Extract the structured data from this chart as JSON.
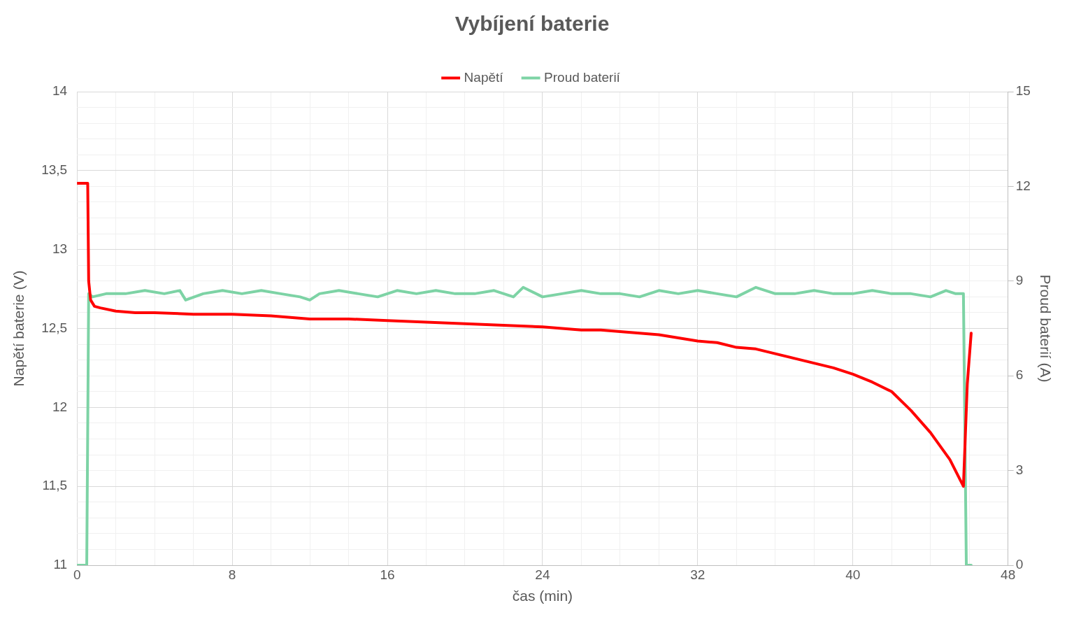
{
  "chart_data": {
    "type": "line",
    "title": "Vybíjení baterie",
    "xlabel": "čas (min)",
    "ylabel": "Napětí baterie (V)",
    "y2label": "Proud baterií (A)",
    "xlim": [
      0,
      48
    ],
    "xticks": [
      0,
      {
        "value": 2,
        "label": null
      },
      {
        "value": 4,
        "label": null
      },
      {
        "value": 6,
        "label": null
      },
      8,
      {
        "value": 10,
        "label": null
      },
      {
        "value": 12,
        "label": null
      },
      {
        "value": 14,
        "label": null
      },
      16,
      {
        "value": 18,
        "label": null
      },
      {
        "value": 20,
        "label": null
      },
      {
        "value": 22,
        "label": null
      },
      24,
      {
        "value": 26,
        "label": null
      },
      {
        "value": 28,
        "label": null
      },
      {
        "value": 30,
        "label": null
      },
      32,
      {
        "value": 34,
        "label": null
      },
      {
        "value": 36,
        "label": null
      },
      {
        "value": 38,
        "label": null
      },
      40,
      {
        "value": 42,
        "label": null
      },
      {
        "value": 44,
        "label": null
      },
      {
        "value": 46,
        "label": null
      },
      48
    ],
    "ylim": [
      11,
      14
    ],
    "yticks": [
      11,
      {
        "value": 11.1,
        "label": null
      },
      {
        "value": 11.2,
        "label": null
      },
      {
        "value": 11.3,
        "label": null
      },
      {
        "value": 11.4,
        "label": null
      },
      {
        "value": 11.5,
        "label": "11,5"
      },
      {
        "value": 11.6,
        "label": null
      },
      {
        "value": 11.7,
        "label": null
      },
      {
        "value": 11.8,
        "label": null
      },
      {
        "value": 11.9,
        "label": null
      },
      12,
      {
        "value": 12.1,
        "label": null
      },
      {
        "value": 12.2,
        "label": null
      },
      {
        "value": 12.3,
        "label": null
      },
      {
        "value": 12.4,
        "label": null
      },
      {
        "value": 12.5,
        "label": "12,5"
      },
      {
        "value": 12.6,
        "label": null
      },
      {
        "value": 12.7,
        "label": null
      },
      {
        "value": 12.8,
        "label": null
      },
      {
        "value": 12.9,
        "label": null
      },
      13,
      {
        "value": 13.1,
        "label": null
      },
      {
        "value": 13.2,
        "label": null
      },
      {
        "value": 13.3,
        "label": null
      },
      {
        "value": 13.4,
        "label": null
      },
      {
        "value": 13.5,
        "label": "13,5"
      },
      {
        "value": 13.6,
        "label": null
      },
      {
        "value": 13.7,
        "label": null
      },
      {
        "value": 13.8,
        "label": null
      },
      {
        "value": 13.9,
        "label": null
      },
      14
    ],
    "y2lim": [
      0,
      15
    ],
    "y2ticks": [
      0,
      3,
      6,
      9,
      12,
      15
    ],
    "grid": true,
    "legend": "top",
    "marker": "none",
    "line_style": "solid",
    "series": [
      {
        "name": "Napětí",
        "color": "#ff0000",
        "x": [
          0,
          0.55,
          0.6,
          0.7,
          0.9,
          1.2,
          2,
          3,
          4,
          6,
          8,
          10,
          12,
          14,
          16,
          18,
          20,
          22,
          24,
          26,
          27,
          28,
          30,
          31,
          32,
          33,
          34,
          35,
          36,
          37,
          38,
          39,
          40,
          41,
          42,
          43,
          44,
          45,
          45.7,
          45.9,
          46.1
        ],
        "values": [
          13.42,
          13.42,
          12.8,
          12.68,
          12.64,
          12.63,
          12.61,
          12.6,
          12.6,
          12.59,
          12.59,
          12.58,
          12.56,
          12.56,
          12.55,
          12.54,
          12.53,
          12.52,
          12.51,
          12.49,
          12.49,
          12.48,
          12.46,
          12.44,
          12.42,
          12.41,
          12.38,
          12.37,
          12.34,
          12.31,
          12.28,
          12.25,
          12.21,
          12.16,
          12.1,
          11.98,
          11.84,
          11.67,
          11.5,
          12.15,
          12.47
        ]
      },
      {
        "name": "Proud baterií",
        "color": "#7dd3a5",
        "axis": "y2",
        "x": [
          0,
          0.5,
          0.6,
          0.8,
          1.5,
          2.5,
          3.5,
          4.5,
          5.3,
          5.6,
          6.5,
          7.5,
          8.5,
          9.5,
          10.5,
          11.5,
          12,
          12.5,
          13.5,
          14.5,
          15.5,
          16.5,
          17.5,
          18.5,
          19.5,
          20.5,
          21.5,
          22.5,
          23,
          24,
          25,
          26,
          27,
          28,
          29,
          30,
          31,
          32,
          33,
          34,
          35,
          36,
          37,
          38,
          39,
          40,
          41,
          42,
          43,
          44,
          44.8,
          45.3,
          45.7,
          45.85,
          46.1
        ],
        "values": [
          0,
          0,
          8.6,
          8.5,
          8.6,
          8.6,
          8.7,
          8.6,
          8.7,
          8.4,
          8.6,
          8.7,
          8.6,
          8.7,
          8.6,
          8.5,
          8.4,
          8.6,
          8.7,
          8.6,
          8.5,
          8.7,
          8.6,
          8.7,
          8.6,
          8.6,
          8.7,
          8.5,
          8.8,
          8.5,
          8.6,
          8.7,
          8.6,
          8.6,
          8.5,
          8.7,
          8.6,
          8.7,
          8.6,
          8.5,
          8.8,
          8.6,
          8.6,
          8.7,
          8.6,
          8.6,
          8.7,
          8.6,
          8.6,
          8.5,
          8.7,
          8.6,
          8.6,
          0,
          0
        ]
      }
    ]
  }
}
